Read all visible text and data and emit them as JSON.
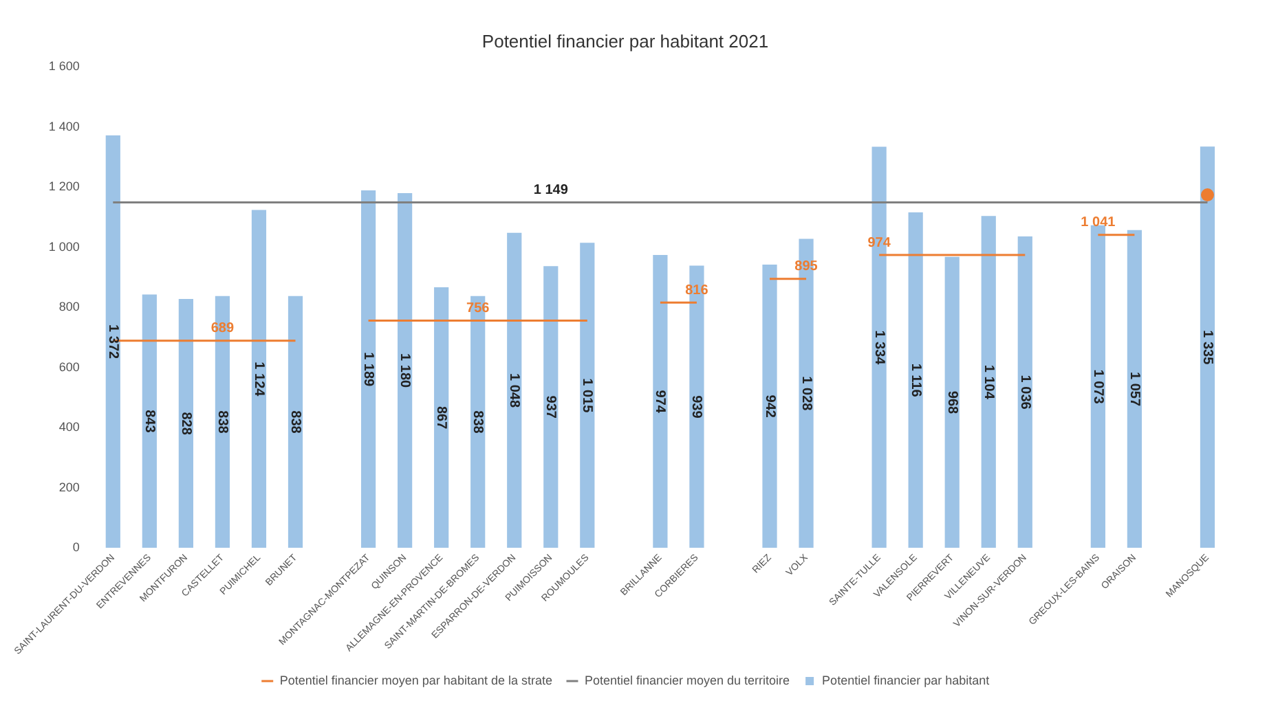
{
  "chart_data": {
    "type": "bar",
    "title": "Potentiel financier par habitant 2021",
    "categories": [
      "SAINT-LAURENT-DU-VERDON",
      "ENTREVENNES",
      "MONTFURON",
      "CASTELLET",
      "PUIMICHEL",
      "BRUNET",
      null,
      "MONTAGNAC-MONTPEZAT",
      "QUINSON",
      "ALLEMAGNE-EN-PROVENCE",
      "SAINT-MARTIN-DE-BROMES",
      "ESPARRON-DE-VERDON",
      "PUIMOISSON",
      "ROUMOULES",
      null,
      "BRILLANNE",
      "CORBIERES",
      null,
      "RIEZ",
      "VOLX",
      null,
      "SAINTE-TULLE",
      "VALENSOLE",
      "PIERREVERT",
      "VILLENEUVE",
      "VINON-SUR-VERDON",
      null,
      "GREOUX-LES-BAINS",
      "ORAISON",
      null,
      "MANOSQUE"
    ],
    "series": [
      {
        "name": "Potentiel financier par habitant",
        "color": "#9dc3e6",
        "values": [
          1372,
          843,
          828,
          838,
          1124,
          838,
          null,
          1189,
          1180,
          867,
          838,
          1048,
          937,
          1015,
          null,
          974,
          939,
          null,
          942,
          1028,
          null,
          1334,
          1116,
          968,
          1104,
          1036,
          null,
          1073,
          1057,
          null,
          1335
        ],
        "value_labels": [
          "1 372",
          "843",
          "828",
          "838",
          "1 124",
          "838",
          null,
          "1 189",
          "1 180",
          "867",
          "838",
          "1 048",
          "937",
          "1 015",
          null,
          "974",
          "939",
          null,
          "942",
          "1 028",
          null,
          "1 334",
          "1 116",
          "968",
          "1 104",
          "1 036",
          null,
          "1 073",
          "1 057",
          null,
          "1 335"
        ]
      },
      {
        "type": "line",
        "name": "Potentiel financier moyen par habitant de la strate",
        "color": "#ed7d31",
        "values": [
          689,
          689,
          689,
          689,
          689,
          689,
          null,
          756,
          756,
          756,
          756,
          756,
          756,
          756,
          null,
          816,
          816,
          null,
          895,
          895,
          null,
          974,
          974,
          974,
          974,
          974,
          null,
          1041,
          1041,
          null,
          1174
        ],
        "value_labels": [
          null,
          null,
          null,
          "689",
          null,
          null,
          null,
          null,
          null,
          null,
          "756",
          null,
          null,
          null,
          null,
          null,
          "816",
          null,
          null,
          "895",
          null,
          "974",
          null,
          null,
          null,
          null,
          null,
          "1 041",
          null,
          null,
          null
        ]
      },
      {
        "type": "line",
        "name": "Potentiel financier moyen du territoire",
        "color": "#7f7f7f",
        "values": [
          1149,
          1149,
          1149,
          1149,
          1149,
          1149,
          1149,
          1149,
          1149,
          1149,
          1149,
          1149,
          1149,
          1149,
          1149,
          1149,
          1149,
          1149,
          1149,
          1149,
          1149,
          1149,
          1149,
          1149,
          1149,
          1149,
          1149,
          1149,
          1149,
          1149,
          1149
        ],
        "value_labels": [
          null,
          null,
          null,
          null,
          null,
          null,
          null,
          null,
          null,
          null,
          null,
          null,
          "1 149",
          null,
          null,
          null,
          null,
          null,
          null,
          null,
          null,
          null,
          null,
          null,
          null,
          null,
          null,
          null,
          null,
          null,
          null
        ]
      }
    ],
    "ylim": [
      0,
      1600
    ],
    "yticks": [
      {
        "value": 0,
        "label": "0"
      },
      {
        "value": 200,
        "label": "200"
      },
      {
        "value": 400,
        "label": "400"
      },
      {
        "value": 600,
        "label": "600"
      },
      {
        "value": 800,
        "label": "800"
      },
      {
        "value": 1000,
        "label": "1 000"
      },
      {
        "value": 1200,
        "label": "1 200"
      },
      {
        "value": 1400,
        "label": "1 400"
      },
      {
        "value": 1600,
        "label": "1 600"
      }
    ],
    "grid": false,
    "legend": "bottom",
    "marker": "none",
    "line_style": "solid"
  }
}
